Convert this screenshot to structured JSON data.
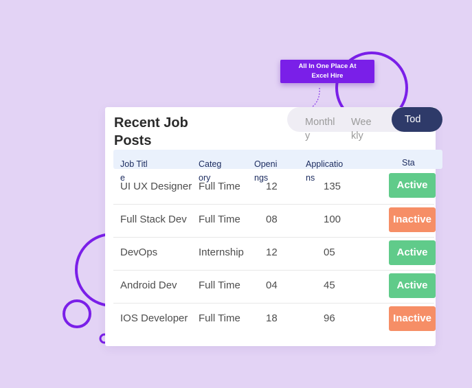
{
  "tooltip": {
    "line1": "All In One Place At",
    "line2": "Excel Hire"
  },
  "card": {
    "title": "Recent Job Posts",
    "period_tabs": {
      "monthly": "Monthly",
      "weekly": "Weekly",
      "today": "Tod",
      "selected": "today"
    },
    "table": {
      "headers": {
        "title": "Job Title",
        "category": "Category",
        "openings": "Openings",
        "applications": "Applications",
        "status": "Sta"
      },
      "rows": [
        {
          "title": "UI UX Designer",
          "category": "Full Time",
          "openings": "12",
          "applications": "135",
          "status": "Active"
        },
        {
          "title": "Full Stack Dev",
          "category": "Full Time",
          "openings": "08",
          "applications": "100",
          "status": "Inactive"
        },
        {
          "title": "DevOps",
          "category": "Internship",
          "openings": "12",
          "applications": "05",
          "status": "Active"
        },
        {
          "title": "Android Dev",
          "category": "Full Time",
          "openings": "04",
          "applications": "45",
          "status": "Active"
        },
        {
          "title": "IOS Developer",
          "category": "Full Time",
          "openings": "18",
          "applications": "96",
          "status": "Inactive"
        }
      ]
    }
  },
  "colors": {
    "background": "#e3d3f5",
    "accent_purple": "#7a1fe8",
    "tab_selected": "#2e3a69",
    "status_active": "#60cb8a",
    "status_inactive": "#f68e66"
  }
}
